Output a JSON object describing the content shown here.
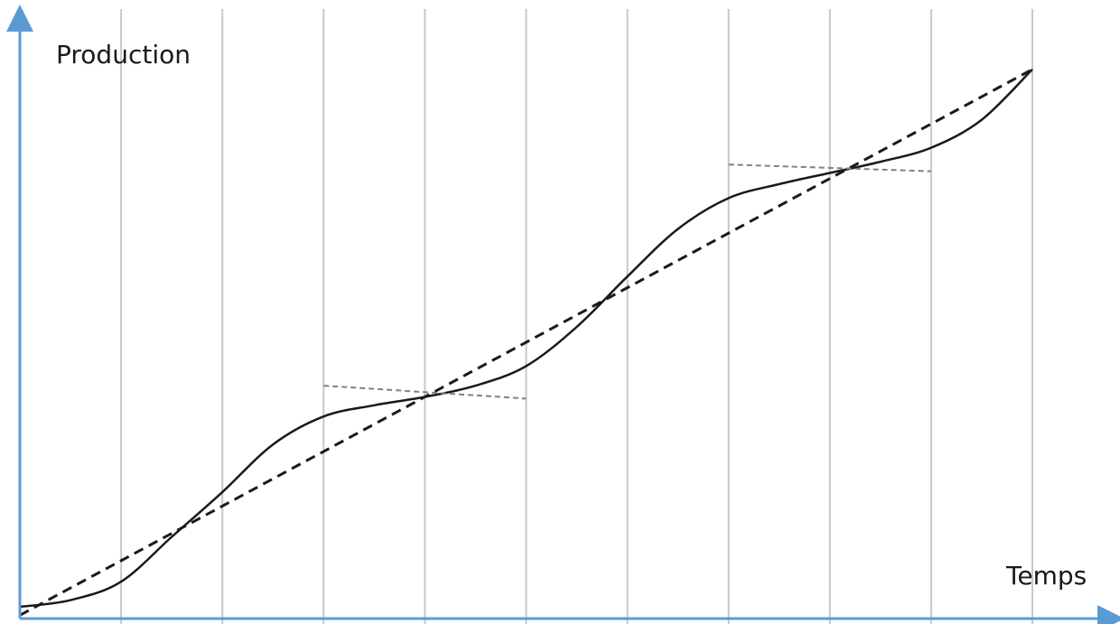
{
  "chart_data": {
    "type": "line",
    "xlabel": "Temps",
    "ylabel": "Production",
    "x_divisions": 10,
    "xlim": [
      0,
      10
    ],
    "ylim": [
      0,
      10
    ],
    "grid": "vertical",
    "colors": {
      "axis": "#5b9bd5",
      "grid": "#c8c8c8",
      "curve": "#1a1a1a",
      "trend": "#1a1a1a",
      "tangent": "#808080"
    },
    "series": [
      {
        "style": "solid",
        "x": [
          0,
          0.5,
          1,
          1.5,
          2,
          2.5,
          3,
          3.5,
          4,
          4.5,
          5,
          5.5,
          6,
          6.5,
          7,
          7.5,
          8,
          8.5,
          9,
          9.5,
          10
        ],
        "y": [
          0,
          0.12,
          0.45,
          1.25,
          2.05,
          2.9,
          3.4,
          3.6,
          3.75,
          3.95,
          4.3,
          5.0,
          5.9,
          6.75,
          7.3,
          7.55,
          7.75,
          7.95,
          8.2,
          8.7,
          9.6
        ]
      },
      {
        "style": "dashed",
        "x": [
          0,
          10
        ],
        "y": [
          -0.15,
          9.6
        ]
      },
      {
        "style": "dashed-thin",
        "x": [
          3,
          5
        ],
        "y": [
          3.95,
          3.72
        ]
      },
      {
        "style": "dashed-thin",
        "x": [
          7,
          9
        ],
        "y": [
          7.9,
          7.78
        ]
      }
    ]
  }
}
